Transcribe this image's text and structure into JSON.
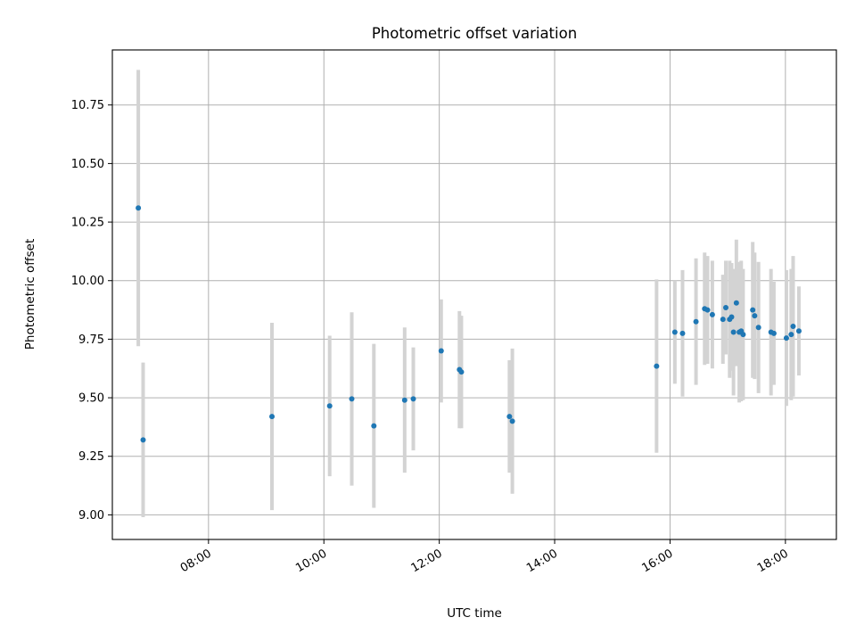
{
  "chart_data": {
    "type": "scatter",
    "title": "Photometric offset variation",
    "xlabel": "UTC time",
    "ylabel": "Photometric offset",
    "xlim": [
      "06:20",
      "18:53"
    ],
    "ylim": [
      8.895,
      10.985
    ],
    "x_ticks": [
      "08:00",
      "10:00",
      "12:00",
      "14:00",
      "16:00",
      "18:00"
    ],
    "y_ticks": [
      9.0,
      9.25,
      9.5,
      9.75,
      10.0,
      10.25,
      10.5,
      10.75
    ],
    "grid": true,
    "colors": {
      "point": "#1f77b4",
      "errorbar": "#d3d3d3",
      "grid": "#b0b0b0"
    },
    "points": [
      {
        "x": "06:47",
        "y": 10.31,
        "err": 0.59
      },
      {
        "x": "06:52",
        "y": 9.32,
        "err": 0.33
      },
      {
        "x": "09:06",
        "y": 9.42,
        "err": 0.4
      },
      {
        "x": "10:06",
        "y": 9.465,
        "err": 0.3
      },
      {
        "x": "10:29",
        "y": 9.495,
        "err": 0.37
      },
      {
        "x": "10:52",
        "y": 9.38,
        "err": 0.35
      },
      {
        "x": "11:24",
        "y": 9.49,
        "err": 0.31
      },
      {
        "x": "11:33",
        "y": 9.495,
        "err": 0.22
      },
      {
        "x": "12:02",
        "y": 9.7,
        "err": 0.22
      },
      {
        "x": "12:21",
        "y": 9.62,
        "err": 0.25
      },
      {
        "x": "12:23",
        "y": 9.61,
        "err": 0.24
      },
      {
        "x": "13:13",
        "y": 9.42,
        "err": 0.24
      },
      {
        "x": "13:16",
        "y": 9.4,
        "err": 0.31
      },
      {
        "x": "15:46",
        "y": 9.635,
        "err": 0.37
      },
      {
        "x": "16:05",
        "y": 9.78,
        "err": 0.22
      },
      {
        "x": "16:13",
        "y": 9.775,
        "err": 0.27
      },
      {
        "x": "16:27",
        "y": 9.825,
        "err": 0.27
      },
      {
        "x": "16:36",
        "y": 9.88,
        "err": 0.24
      },
      {
        "x": "16:39",
        "y": 9.875,
        "err": 0.23
      },
      {
        "x": "16:44",
        "y": 9.855,
        "err": 0.23
      },
      {
        "x": "16:55",
        "y": 9.835,
        "err": 0.19
      },
      {
        "x": "16:58",
        "y": 9.885,
        "err": 0.2
      },
      {
        "x": "17:02",
        "y": 9.835,
        "err": 0.25
      },
      {
        "x": "17:04",
        "y": 9.845,
        "err": 0.23
      },
      {
        "x": "17:06",
        "y": 9.78,
        "err": 0.27
      },
      {
        "x": "17:09",
        "y": 9.905,
        "err": 0.27
      },
      {
        "x": "17:12",
        "y": 9.78,
        "err": 0.3
      },
      {
        "x": "17:14",
        "y": 9.785,
        "err": 0.3
      },
      {
        "x": "17:16",
        "y": 9.77,
        "err": 0.28
      },
      {
        "x": "17:26",
        "y": 9.875,
        "err": 0.29
      },
      {
        "x": "17:28",
        "y": 9.85,
        "err": 0.27
      },
      {
        "x": "17:32",
        "y": 9.8,
        "err": 0.28
      },
      {
        "x": "17:45",
        "y": 9.78,
        "err": 0.27
      },
      {
        "x": "17:48",
        "y": 9.775,
        "err": 0.22
      },
      {
        "x": "18:01",
        "y": 9.755,
        "err": 0.29
      },
      {
        "x": "18:06",
        "y": 9.77,
        "err": 0.28
      },
      {
        "x": "18:08",
        "y": 9.805,
        "err": 0.3
      },
      {
        "x": "18:14",
        "y": 9.785,
        "err": 0.19
      }
    ]
  }
}
